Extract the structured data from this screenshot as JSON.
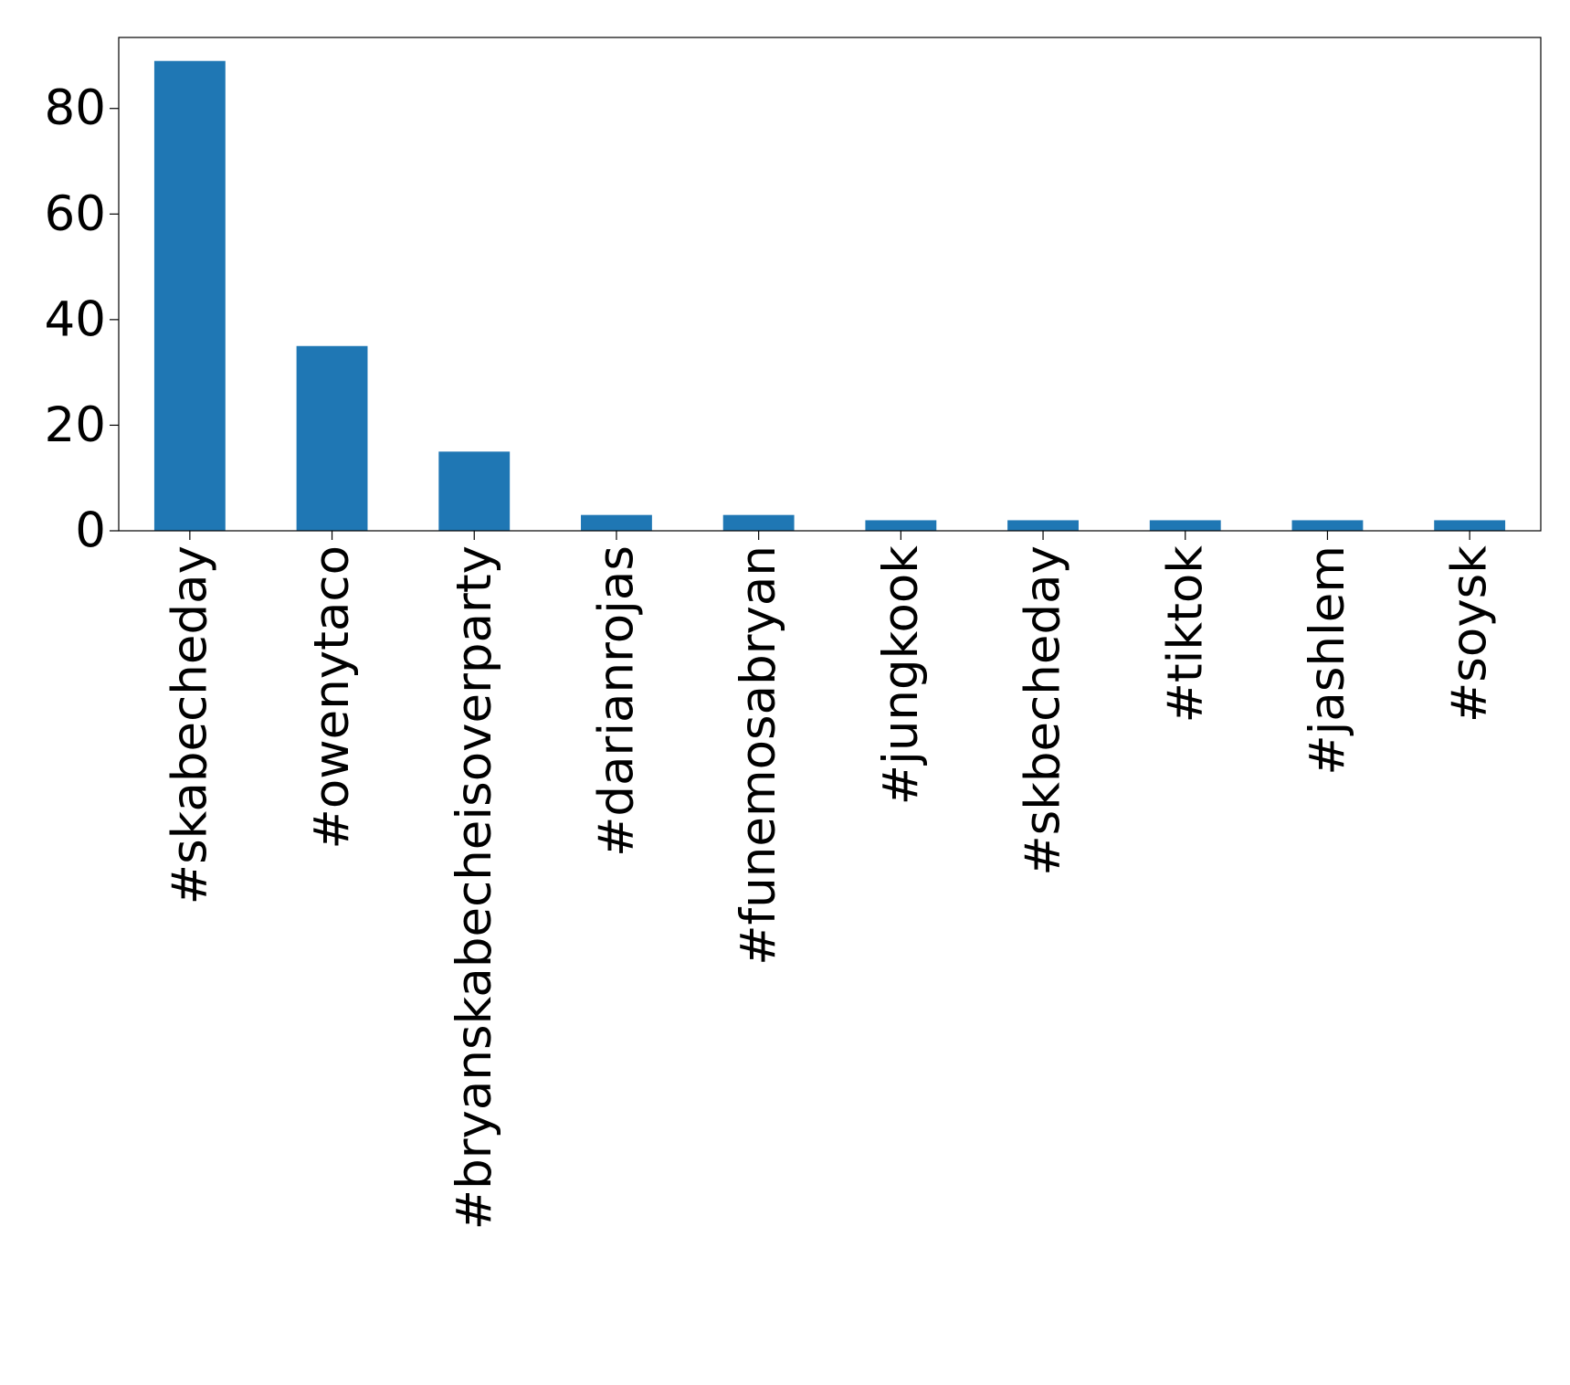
{
  "chart_data": {
    "type": "bar",
    "categories": [
      "#skabecheday",
      "#owenytaco",
      "#bryanskabecheisoverparty",
      "#darianrojas",
      "#funemosabryan",
      "#jungkook",
      "#skbecheday",
      "#tiktok",
      "#jashlem",
      "#soysk"
    ],
    "values": [
      89,
      35,
      15,
      3,
      3,
      2,
      2,
      2,
      2,
      2
    ],
    "color": "#1f77b4",
    "ylim": [
      0,
      93.45
    ],
    "yticks": [
      0,
      20,
      40,
      60,
      80
    ],
    "grid": false
  }
}
